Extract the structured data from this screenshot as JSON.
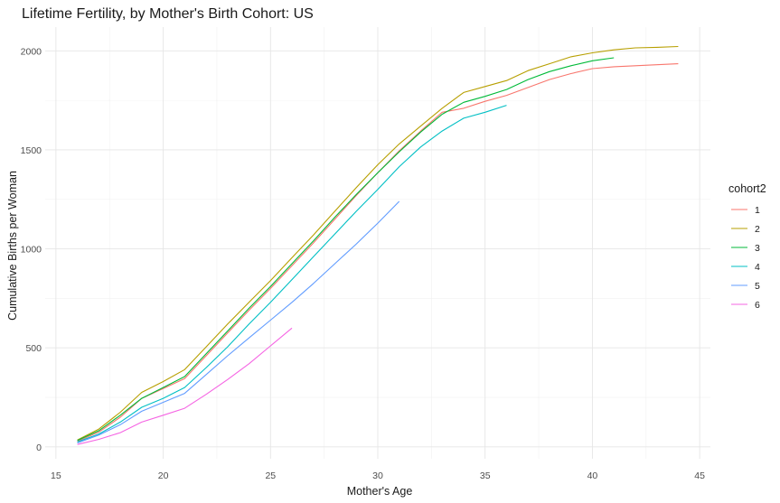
{
  "chart_data": {
    "type": "line",
    "title": "Lifetime Fertility, by Mother's Birth Cohort: US",
    "xlabel": "Mother's Age",
    "ylabel": "Cumulative Births per Woman",
    "xlim": [
      14.5,
      45.5
    ],
    "ylim": [
      -60,
      2120
    ],
    "x_ticks": [
      15,
      20,
      25,
      30,
      35,
      40,
      45
    ],
    "y_ticks": [
      0,
      500,
      1000,
      1500,
      2000
    ],
    "grid": true,
    "legend": {
      "title": "cohort2",
      "position": "right"
    },
    "series": [
      {
        "name": "1",
        "color": "#F8766D",
        "x": [
          16,
          17,
          18,
          19,
          20,
          21,
          22,
          23,
          24,
          25,
          26,
          27,
          28,
          29,
          30,
          31,
          32,
          33,
          34,
          35,
          36,
          37,
          38,
          39,
          40,
          41,
          42,
          43,
          44
        ],
        "y": [
          28,
          75,
          150,
          245,
          295,
          345,
          460,
          575,
          690,
          800,
          915,
          1030,
          1150,
          1270,
          1385,
          1495,
          1595,
          1690,
          1710,
          1745,
          1775,
          1815,
          1855,
          1885,
          1910,
          1920,
          1925,
          1930,
          1935
        ]
      },
      {
        "name": "2",
        "color": "#B79F00",
        "x": [
          16,
          17,
          18,
          19,
          20,
          21,
          22,
          23,
          24,
          25,
          26,
          27,
          28,
          29,
          30,
          31,
          32,
          33,
          34,
          35,
          36,
          37,
          38,
          39,
          40,
          41,
          42,
          43,
          44
        ],
        "y": [
          35,
          90,
          175,
          275,
          330,
          390,
          505,
          620,
          730,
          840,
          955,
          1070,
          1190,
          1310,
          1425,
          1530,
          1620,
          1710,
          1790,
          1820,
          1850,
          1900,
          1935,
          1970,
          1990,
          2005,
          2015,
          2018,
          2022
        ]
      },
      {
        "name": "3",
        "color": "#00BA38",
        "x": [
          16,
          17,
          18,
          19,
          20,
          21,
          22,
          23,
          24,
          25,
          26,
          27,
          28,
          29,
          30,
          31,
          32,
          33,
          34,
          35,
          36,
          37,
          38,
          39,
          40,
          41
        ],
        "y": [
          32,
          82,
          160,
          245,
          300,
          355,
          470,
          585,
          700,
          810,
          925,
          1040,
          1160,
          1275,
          1385,
          1490,
          1590,
          1680,
          1740,
          1770,
          1805,
          1855,
          1895,
          1925,
          1950,
          1965
        ]
      },
      {
        "name": "4",
        "color": "#00BFC4",
        "x": [
          16,
          17,
          18,
          19,
          20,
          21,
          22,
          23,
          24,
          25,
          26,
          27,
          28,
          29,
          30,
          31,
          32,
          33,
          34,
          35,
          36
        ],
        "y": [
          25,
          65,
          125,
          200,
          245,
          300,
          400,
          505,
          620,
          730,
          845,
          960,
          1075,
          1190,
          1300,
          1415,
          1515,
          1595,
          1660,
          1690,
          1725
        ]
      },
      {
        "name": "5",
        "color": "#619CFF",
        "x": [
          16,
          17,
          18,
          19,
          20,
          21,
          22,
          23,
          24,
          25,
          26,
          27,
          28,
          29,
          30,
          31
        ],
        "y": [
          20,
          60,
          112,
          180,
          225,
          270,
          365,
          460,
          550,
          640,
          730,
          825,
          925,
          1025,
          1130,
          1240
        ]
      },
      {
        "name": "6",
        "color": "#F564E3",
        "x": [
          16,
          17,
          18,
          19,
          20,
          21,
          22,
          23,
          24,
          25,
          26
        ],
        "y": [
          12,
          38,
          72,
          125,
          160,
          195,
          265,
          340,
          420,
          510,
          600
        ]
      }
    ]
  }
}
